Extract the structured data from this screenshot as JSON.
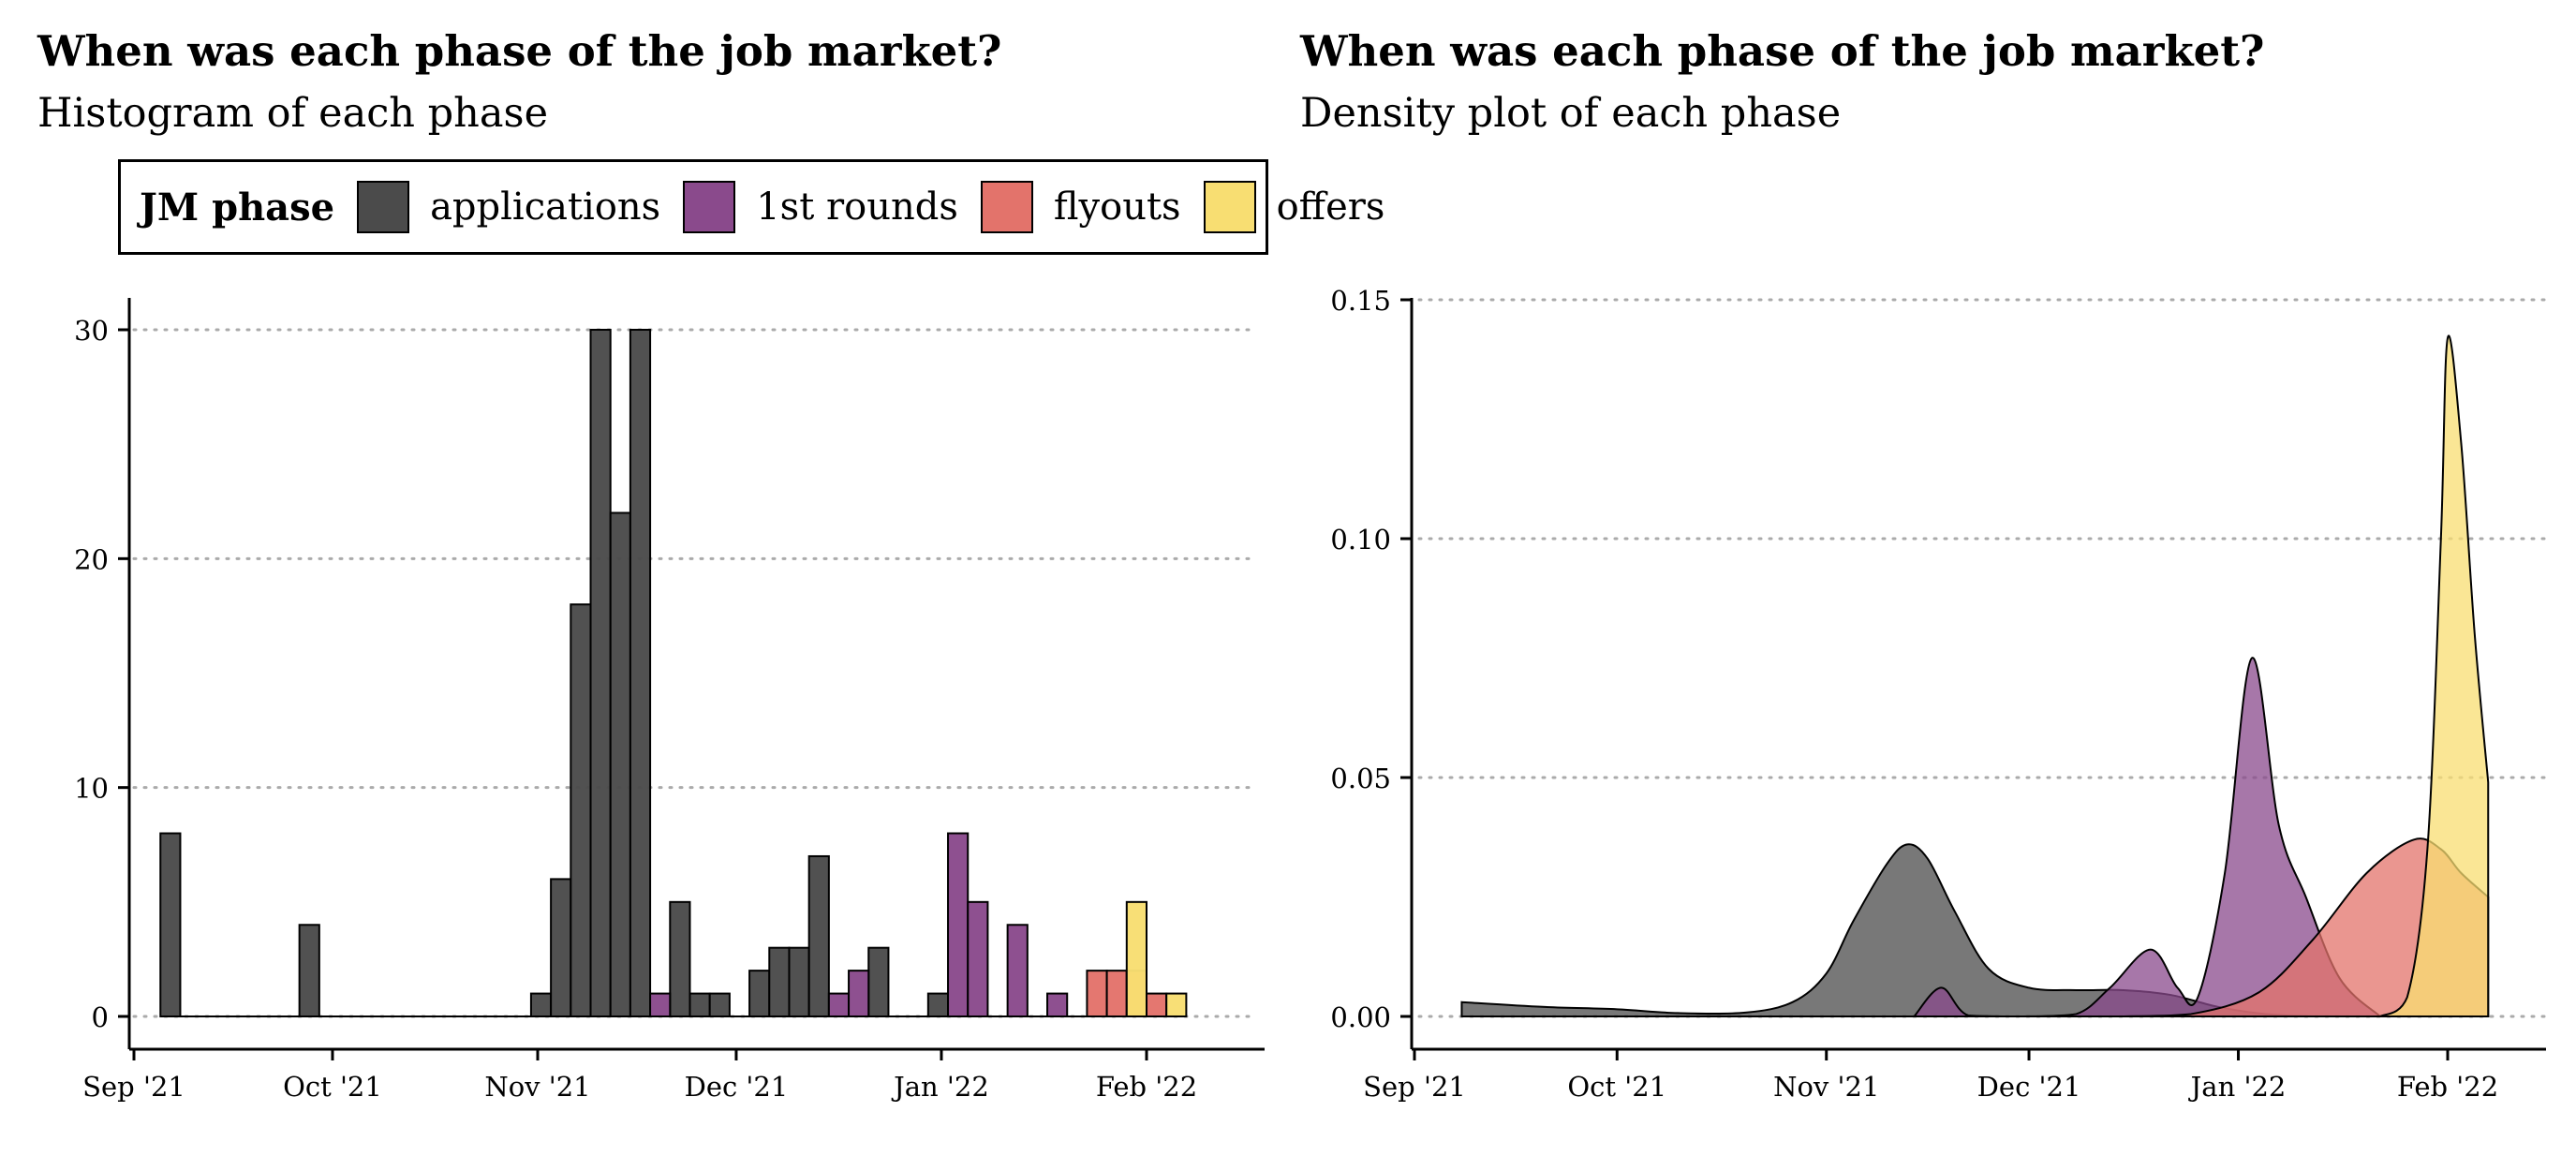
{
  "panels": [
    {
      "title": "When was each phase of the job market?",
      "subtitle": "Histogram of each phase"
    },
    {
      "title": "When was each phase of the job market?",
      "subtitle": "Density plot of each phase"
    }
  ],
  "legend": {
    "title": "JM phase",
    "items": [
      {
        "label": "applications",
        "color": "#4b4b4b"
      },
      {
        "label": "1st rounds",
        "color": "#8a4a8c"
      },
      {
        "label": "flyouts",
        "color": "#e3736b"
      },
      {
        "label": "offers",
        "color": "#f8de72"
      }
    ]
  },
  "chart_data": [
    {
      "type": "bar",
      "title": "When was each phase of the job market?",
      "subtitle": "Histogram of each phase",
      "x_ticks": [
        "Sep '21",
        "Oct '21",
        "Nov '21",
        "Dec '21",
        "Jan '22",
        "Feb '22"
      ],
      "y_ticks": [
        "0",
        "10",
        "20",
        "30"
      ],
      "ylim": [
        0,
        31.5
      ],
      "grid": "horizontal dotted",
      "series": [
        {
          "name": "applications",
          "color": "#4b4b4b",
          "bins": [
            {
              "x": "2021-09-05",
              "value": 8
            },
            {
              "x": "2021-09-26",
              "value": 4
            },
            {
              "x": "2021-10-31",
              "value": 1
            },
            {
              "x": "2021-11-03",
              "value": 6
            },
            {
              "x": "2021-11-06",
              "value": 18
            },
            {
              "x": "2021-11-09",
              "value": 30
            },
            {
              "x": "2021-11-12",
              "value": 22
            },
            {
              "x": "2021-11-15",
              "value": 30
            },
            {
              "x": "2021-11-21",
              "value": 5
            },
            {
              "x": "2021-11-24",
              "value": 1
            },
            {
              "x": "2021-11-27",
              "value": 1
            },
            {
              "x": "2021-12-03",
              "value": 2
            },
            {
              "x": "2021-12-06",
              "value": 3
            },
            {
              "x": "2021-12-09",
              "value": 3
            },
            {
              "x": "2021-12-12",
              "value": 7
            },
            {
              "x": "2021-12-21",
              "value": 3
            },
            {
              "x": "2021-12-30",
              "value": 1
            }
          ]
        },
        {
          "name": "1st rounds",
          "color": "#8a4a8c",
          "bins": [
            {
              "x": "2021-11-18",
              "value": 1
            },
            {
              "x": "2021-12-15",
              "value": 1
            },
            {
              "x": "2021-12-18",
              "value": 2
            },
            {
              "x": "2022-01-02",
              "value": 8
            },
            {
              "x": "2022-01-05",
              "value": 5
            },
            {
              "x": "2022-01-11",
              "value": 4
            },
            {
              "x": "2022-01-17",
              "value": 1
            }
          ]
        },
        {
          "name": "flyouts",
          "color": "#e3736b",
          "bins": [
            {
              "x": "2022-01-23",
              "value": 2
            },
            {
              "x": "2022-01-26",
              "value": 2
            },
            {
              "x": "2022-01-29",
              "value": 2
            },
            {
              "x": "2022-02-01",
              "value": 1
            }
          ]
        },
        {
          "name": "offers",
          "color": "#f8de72",
          "bins": [
            {
              "x": "2022-01-29",
              "value": 5
            },
            {
              "x": "2022-02-04",
              "value": 1
            }
          ]
        }
      ]
    },
    {
      "type": "area",
      "title": "When was each phase of the job market?",
      "subtitle": "Density plot of each phase",
      "x_ticks": [
        "Sep '21",
        "Oct '21",
        "Nov '21",
        "Dec '21",
        "Jan '22",
        "Feb '22"
      ],
      "y_ticks": [
        "0.00",
        "0.05",
        "0.10",
        "0.15"
      ],
      "ylim": [
        0,
        0.15
      ],
      "grid": "horizontal dotted",
      "series": [
        {
          "name": "applications",
          "color": "#4b4b4b",
          "points": [
            [
              "2021-09-08",
              0.003
            ],
            [
              "2021-09-20",
              0.002
            ],
            [
              "2021-10-01",
              0.0015
            ],
            [
              "2021-10-10",
              0.0007
            ],
            [
              "2021-10-20",
              0.0008
            ],
            [
              "2021-10-27",
              0.003
            ],
            [
              "2021-11-01",
              0.009
            ],
            [
              "2021-11-05",
              0.02
            ],
            [
              "2021-11-10",
              0.032
            ],
            [
              "2021-11-13",
              0.036
            ],
            [
              "2021-11-16",
              0.033
            ],
            [
              "2021-11-20",
              0.022
            ],
            [
              "2021-11-25",
              0.01
            ],
            [
              "2021-12-01",
              0.006
            ],
            [
              "2021-12-08",
              0.0055
            ],
            [
              "2021-12-15",
              0.0055
            ],
            [
              "2021-12-22",
              0.0045
            ],
            [
              "2021-12-29",
              0.002
            ],
            [
              "2022-01-05",
              0.0005
            ],
            [
              "2022-01-12",
              0.0
            ]
          ]
        },
        {
          "name": "1st rounds",
          "color": "#8a4a8c",
          "points": [
            [
              "2021-11-14",
              0.0
            ],
            [
              "2021-11-18",
              0.006
            ],
            [
              "2021-11-22",
              0.0002
            ],
            [
              "2021-11-30",
              0.0
            ],
            [
              "2021-12-08",
              0.0005
            ],
            [
              "2021-12-13",
              0.006
            ],
            [
              "2021-12-19",
              0.014
            ],
            [
              "2021-12-23",
              0.006
            ],
            [
              "2021-12-26",
              0.004
            ],
            [
              "2021-12-30",
              0.03
            ],
            [
              "2022-01-03",
              0.075
            ],
            [
              "2022-01-07",
              0.04
            ],
            [
              "2022-01-11",
              0.025
            ],
            [
              "2022-01-16",
              0.008
            ],
            [
              "2022-01-22",
              0.0
            ]
          ]
        },
        {
          "name": "flyouts",
          "color": "#e3736b",
          "points": [
            [
              "2021-12-15",
              0.0
            ],
            [
              "2021-12-25",
              0.0005
            ],
            [
              "2022-01-04",
              0.005
            ],
            [
              "2022-01-12",
              0.016
            ],
            [
              "2022-01-20",
              0.03
            ],
            [
              "2022-01-27",
              0.037
            ],
            [
              "2022-01-31",
              0.035
            ],
            [
              "2022-02-03",
              0.03
            ],
            [
              "2022-02-07",
              0.025
            ]
          ]
        },
        {
          "name": "offers",
          "color": "#f8de72",
          "points": [
            [
              "2022-01-22",
              0.0
            ],
            [
              "2022-01-26",
              0.004
            ],
            [
              "2022-01-29",
              0.035
            ],
            [
              "2022-01-31",
              0.1
            ],
            [
              "2022-02-01",
              0.142
            ],
            [
              "2022-02-03",
              0.12
            ],
            [
              "2022-02-05",
              0.08
            ],
            [
              "2022-02-07",
              0.049
            ]
          ]
        }
      ]
    }
  ]
}
